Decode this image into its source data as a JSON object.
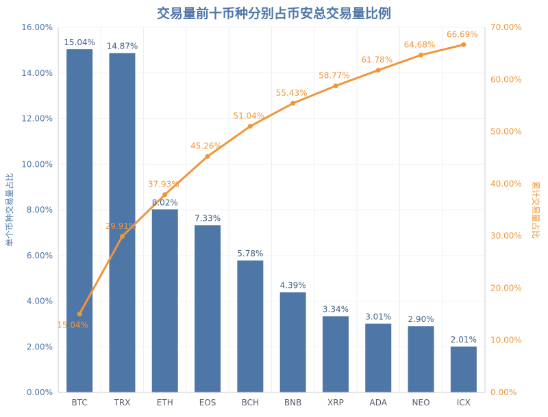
{
  "chart_data": {
    "type": "bar+line",
    "title": "交易量前十币种分别占币安总交易量比例",
    "categories": [
      "BTC",
      "TRX",
      "ETH",
      "EOS",
      "BCH",
      "BNB",
      "XRP",
      "ADA",
      "NEO",
      "ICX"
    ],
    "bar_series": {
      "values": [
        15.04,
        14.87,
        8.02,
        7.33,
        5.78,
        4.39,
        3.34,
        3.01,
        2.9,
        2.01
      ],
      "labels": [
        "15.04%",
        "14.87%",
        "8.02%",
        "7.33%",
        "5.78%",
        "4.39%",
        "3.34%",
        "3.01%",
        "2.90%",
        "2.01%"
      ],
      "color": "#4e77a8"
    },
    "line_series": {
      "values": [
        15.04,
        29.91,
        37.93,
        45.26,
        51.04,
        55.43,
        58.77,
        61.78,
        64.68,
        66.69
      ],
      "labels": [
        "15.04%",
        "29.91%",
        "37.93%",
        "45.26%",
        "51.04%",
        "55.43%",
        "58.77%",
        "61.78%",
        "64.68%",
        "66.69%"
      ],
      "color": "#f0963a"
    },
    "y_left": {
      "label": "单个币种交易量占比",
      "range": [
        0,
        16
      ],
      "ticks": [
        0,
        2,
        4,
        6,
        8,
        10,
        12,
        14,
        16
      ],
      "tick_labels": [
        "0.00%",
        "2.00%",
        "4.00%",
        "6.00%",
        "8.00%",
        "10.00%",
        "12.00%",
        "14.00%",
        "16.00%"
      ],
      "color": "#4e77a8"
    },
    "y_right": {
      "label": "累计交易量占比",
      "range": [
        0,
        70
      ],
      "ticks": [
        0,
        10,
        20,
        30,
        40,
        50,
        60,
        70
      ],
      "tick_labels": [
        "0.00%",
        "10.00%",
        "20.00%",
        "30.00%",
        "40.00%",
        "50.00%",
        "60.00%",
        "70.00%"
      ],
      "color": "#f0963a"
    },
    "grid": true,
    "title_color": "#4e77a8"
  }
}
